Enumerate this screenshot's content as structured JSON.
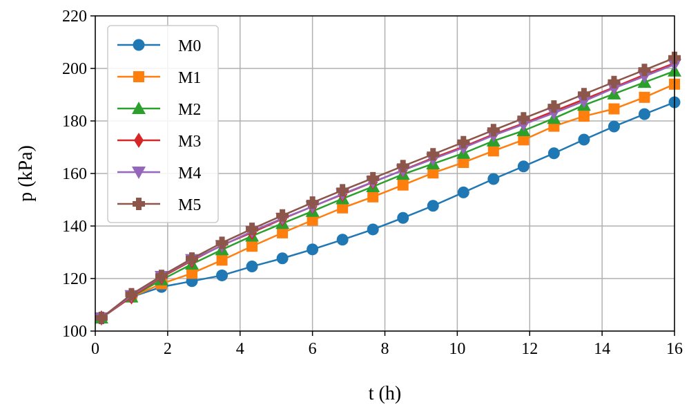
{
  "chart_data": {
    "type": "line",
    "title": "",
    "xlabel": "t (h)",
    "ylabel": "p (kPa)",
    "xlim": [
      0,
      16
    ],
    "ylim": [
      100,
      220
    ],
    "xticks": [
      0,
      2,
      4,
      6,
      8,
      10,
      12,
      14,
      16
    ],
    "yticks": [
      100,
      120,
      140,
      160,
      180,
      200,
      220
    ],
    "grid": true,
    "legend_position": "top-left",
    "x": [
      0.17,
      1.0,
      1.83,
      2.67,
      3.5,
      4.33,
      5.17,
      6.0,
      6.83,
      7.67,
      8.5,
      9.33,
      10.17,
      11.0,
      11.83,
      12.67,
      13.5,
      14.33,
      15.17,
      16.0
    ],
    "series": [
      {
        "name": "M0",
        "color": "#1f77b4",
        "marker": "circle",
        "values": [
          105,
          113,
          116.8,
          119,
          121.2,
          124.6,
          127.7,
          131.1,
          134.8,
          138.7,
          143.1,
          147.7,
          152.8,
          157.9,
          162.7,
          167.7,
          172.9,
          177.9,
          182.6,
          187.1
        ]
      },
      {
        "name": "M1",
        "color": "#ff7f0e",
        "marker": "square",
        "values": [
          105,
          113,
          118,
          122,
          127,
          132.3,
          137.4,
          142.2,
          146.9,
          151.1,
          155.6,
          160.2,
          164.2,
          168.6,
          172.8,
          178,
          181.8,
          184.6,
          189,
          194
        ]
      },
      {
        "name": "M2",
        "color": "#2ca02c",
        "marker": "triangle-up",
        "values": [
          105,
          113,
          119.5,
          125.5,
          131,
          136.2,
          141,
          145.6,
          150.4,
          155,
          159.7,
          163.7,
          167.7,
          172.4,
          176.3,
          181,
          186,
          190.3,
          194.7,
          199
        ]
      },
      {
        "name": "M3",
        "color": "#d62728",
        "marker": "diamond",
        "values": [
          105,
          113,
          120.5,
          126.8,
          132.7,
          137.5,
          142.7,
          147.4,
          152,
          156.7,
          161.3,
          165.9,
          170.2,
          174.9,
          179.1,
          183.7,
          188.2,
          192.8,
          197.6,
          202
        ]
      },
      {
        "name": "M4",
        "color": "#9467bd",
        "marker": "triangle-down",
        "values": [
          105,
          113.5,
          120.8,
          127.2,
          132.5,
          138,
          142.9,
          147.4,
          152.2,
          156.8,
          161.2,
          165.5,
          169.8,
          174.5,
          178.7,
          183,
          187.5,
          192.5,
          197,
          201.5
        ]
      },
      {
        "name": "M5",
        "color": "#8c564b",
        "marker": "plus-filled",
        "values": [
          105,
          114,
          121,
          127.6,
          133.6,
          138.9,
          144,
          148.9,
          153.6,
          158.2,
          162.8,
          167.3,
          171.9,
          176.5,
          181,
          185.5,
          190.2,
          194.8,
          199.4,
          204
        ]
      }
    ]
  }
}
